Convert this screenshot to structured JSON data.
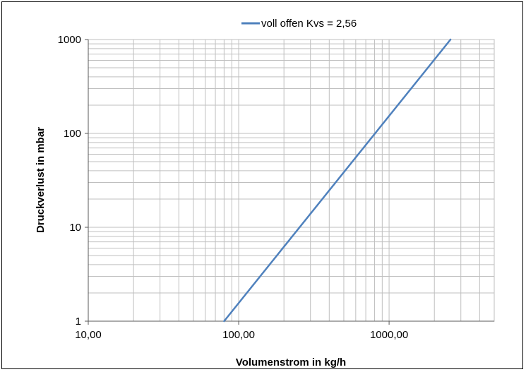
{
  "chart_data": {
    "type": "line",
    "title": "",
    "xlabel": "Volumenstrom in kg/h",
    "ylabel": "Druckverlust in mbar",
    "x_scale": "log",
    "y_scale": "log",
    "xlim": [
      10,
      5000
    ],
    "ylim": [
      1,
      1000
    ],
    "x_tick_values": [
      10,
      100,
      1000
    ],
    "x_tick_labels": [
      "10,00",
      "100,00",
      "1000,00"
    ],
    "y_tick_values": [
      1,
      10,
      100,
      1000
    ],
    "y_tick_labels": [
      "1",
      "10",
      "100",
      "1000"
    ],
    "grid": true,
    "legend_position": "top",
    "series": [
      {
        "name": "voll offen Kvs = 2,56",
        "color": "#4f81bd",
        "x": [
          80,
          2560
        ],
        "y": [
          1,
          1000
        ]
      }
    ]
  }
}
